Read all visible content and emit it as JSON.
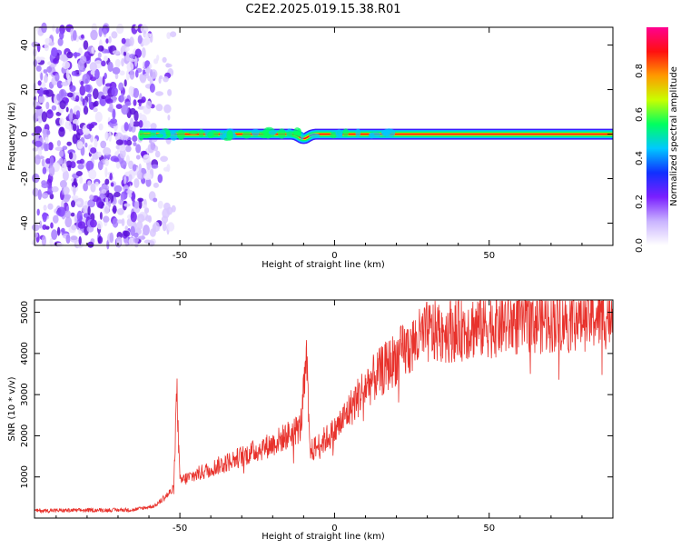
{
  "title": "C2E2.2025.019.15.38.R01",
  "chart_data": [
    {
      "type": "heatmap",
      "xlabel": "Height of straight line (km)",
      "ylabel": "Frequency (Hz)",
      "xlim": [
        -97,
        90
      ],
      "ylim": [
        -50,
        48
      ],
      "x_ticks": [
        -50,
        0,
        50
      ],
      "y_ticks": [
        40,
        20,
        0,
        -20,
        -40
      ],
      "colorbar": {
        "label": "Normalized spectral amplitude",
        "ticks": [
          0.0,
          0.2,
          0.4,
          0.6,
          0.8
        ],
        "range": [
          0,
          1
        ],
        "colors": [
          "#ffffff",
          "#c9b3ff",
          "#7a1fff",
          "#1030ff",
          "#00c8ff",
          "#00ff60",
          "#c8ff00",
          "#ff9a00",
          "#ff1010",
          "#ff0090"
        ]
      },
      "line": {
        "frequency": 0,
        "x_start": -63,
        "x_end": 90,
        "dips": [
          {
            "x": -10,
            "frequency": -2
          }
        ]
      },
      "noise_region": {
        "x_start": -97,
        "x_end": -58
      }
    },
    {
      "type": "line",
      "xlabel": "Height of straight line (km)",
      "ylabel": "SNR (10 * v/v)",
      "xlim": [
        -97,
        90
      ],
      "ylim": [
        0,
        5300
      ],
      "x_ticks": [
        -50,
        0,
        50
      ],
      "y_ticks": [
        1000,
        2000,
        3000,
        4000,
        5000
      ],
      "color": "#e8322c",
      "trend": [
        {
          "x": -97,
          "y": 180
        },
        {
          "x": -65,
          "y": 200
        },
        {
          "x": -58,
          "y": 300
        },
        {
          "x": -52,
          "y": 700
        },
        {
          "x": -51,
          "y": 3100
        },
        {
          "x": -50,
          "y": 900
        },
        {
          "x": -40,
          "y": 1200
        },
        {
          "x": -20,
          "y": 1800
        },
        {
          "x": -11,
          "y": 2200
        },
        {
          "x": -9,
          "y": 3800
        },
        {
          "x": -8,
          "y": 1600
        },
        {
          "x": 0,
          "y": 2100
        },
        {
          "x": 10,
          "y": 3200
        },
        {
          "x": 20,
          "y": 3900
        },
        {
          "x": 30,
          "y": 4500
        },
        {
          "x": 50,
          "y": 4700
        },
        {
          "x": 70,
          "y": 4850
        },
        {
          "x": 90,
          "y": 4950
        }
      ]
    }
  ]
}
